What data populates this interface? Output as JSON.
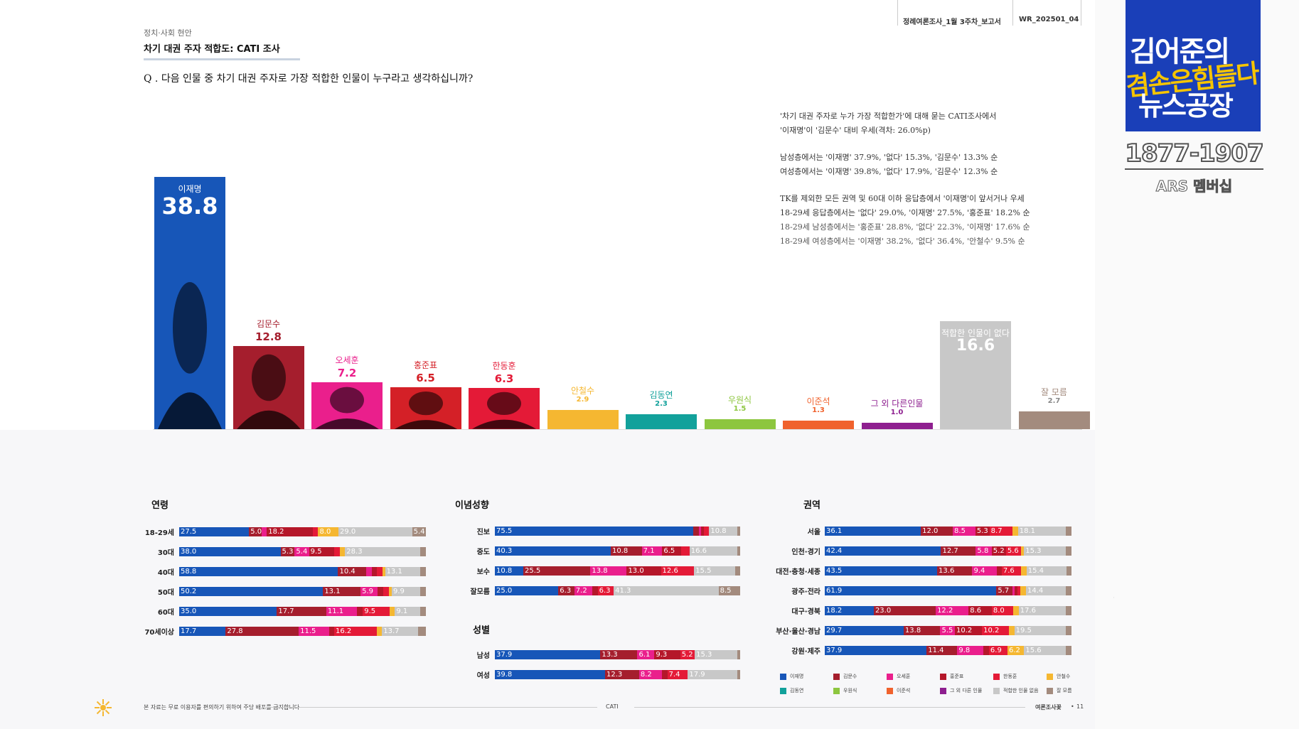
{
  "header": {
    "category": "정치·사회 현안",
    "section_title": "차기 대권 주자 적합도: CATI 조사",
    "question": "Q . 다음 인물 중 차기 대권 주자로 가장 적합한 인물이 누구라고 생각하십니까?",
    "doc_ids": [
      "정례여론조사_1월 3주차_보고서",
      "WR_202501_04"
    ]
  },
  "summary": {
    "lines_1": [
      "'차기 대권 주자로 누가 가장 적합한가'에 대해 묻는 CATI조사에서",
      "'이재명'이 '김문수' 대비 우세(격차: 26.0%p)"
    ],
    "lines_2": [
      "남성층에서는 '이재명' 37.9%, '없다' 15.3%, '김문수' 13.3% 순",
      "여성층에서는 '이재명' 39.8%, '없다' 17.9%, '김문수' 12.3% 순"
    ],
    "lines_3": [
      "TK를 제외한 모든 권역 및 60대 이하 응답층에서 '이재명'이 앞서거나 우세",
      "18-29세 응답층에서는 '없다' 29.0%, '이재명' 27.5%, '홍준표' 18.2% 순",
      "18-29세 남성층에서는 '홍준표' 28.8%, '없다' 22.3%, '이재명' 17.6% 순",
      "18-29세 여성층에서는 '이재명' 38.2%, '없다' 36.4%, '안철수' 9.5% 순"
    ]
  },
  "chart_data": [
    {
      "type": "bar",
      "categories": [
        "이재명",
        "김문수",
        "오세훈",
        "홍준표",
        "한동훈",
        "안철수",
        "김동연",
        "우원식",
        "이준석",
        "그 외 다른인물",
        "적합한 인물이 없다",
        "잘 모름"
      ],
      "values": [
        38.8,
        12.8,
        7.2,
        6.5,
        6.3,
        2.9,
        2.3,
        1.5,
        1.3,
        1.0,
        16.6,
        2.7
      ],
      "value_labels": [
        "38.8",
        "12.8",
        "7.2",
        "6.5",
        "6.3",
        "2.9",
        "2.3",
        "1.5",
        "1.3",
        "1.0",
        "16.6",
        "2.7"
      ],
      "colors": [
        "#1756b8",
        "#a51e2d",
        "#ea1f8c",
        "#d42027",
        "#e41a37",
        "#f5b731",
        "#12a19b",
        "#8dc63f",
        "#f0622d",
        "#8e1f8f",
        "#c8c8c8",
        "#a38b7e"
      ],
      "ylim": [
        0,
        40
      ]
    },
    {
      "type": "bar",
      "stacked": true,
      "horizontal": true,
      "group": "연령",
      "categories": [
        "18-29세",
        "30대",
        "40대",
        "50대",
        "60대",
        "70세이상"
      ],
      "series": [
        {
          "name": "이재명",
          "values": [
            27.5,
            38.0,
            58.8,
            50.2,
            35.0,
            17.7
          ]
        },
        {
          "name": "김문수",
          "values": [
            5.0,
            5.3,
            10.4,
            13.1,
            17.7,
            27.8
          ]
        },
        {
          "name": "오세훈",
          "values": [
            2.0,
            5.4,
            2.0,
            5.9,
            11.1,
            11.5
          ]
        },
        {
          "name": "홍준표",
          "values": [
            18.2,
            9.5,
            2.0,
            2.0,
            2.0,
            2.0
          ]
        },
        {
          "name": "한동훈",
          "values": [
            2.0,
            2.0,
            2.0,
            2.0,
            9.5,
            16.2
          ]
        },
        {
          "name": "안철수",
          "values": [
            8.0,
            2.0,
            1.0,
            1.0,
            2.0,
            2.0
          ]
        },
        {
          "name": "적합한 인물 없음",
          "values": [
            29.0,
            28.3,
            13.1,
            9.9,
            9.1,
            13.7
          ]
        },
        {
          "name": "잘 모름",
          "values": [
            5.4,
            2.0,
            2.0,
            2.0,
            2.0,
            3.0
          ]
        }
      ],
      "labels": [
        [
          "27.5",
          "5.0",
          "",
          "18.2",
          "",
          "8.0",
          "29.0",
          "5.4"
        ],
        [
          "38.0",
          "5.3",
          "5.4",
          "9.5",
          "",
          "",
          "28.3",
          ""
        ],
        [
          "58.8",
          "10.4",
          "",
          "",
          "",
          "",
          "13.1",
          ""
        ],
        [
          "50.2",
          "13.1",
          "5.9",
          "",
          "",
          "",
          "9.9",
          ""
        ],
        [
          "35.0",
          "17.7",
          "11.1",
          "",
          "9.5",
          "",
          "9.1",
          ""
        ],
        [
          "17.7",
          "27.8",
          "11.5",
          "",
          "16.2",
          "",
          "13.7",
          ""
        ]
      ]
    },
    {
      "type": "bar",
      "stacked": true,
      "horizontal": true,
      "group": "이념성향",
      "categories": [
        "진보",
        "중도",
        "보수",
        "잘모름"
      ],
      "series": [
        {
          "name": "이재명",
          "values": [
            75.5,
            40.3,
            10.8,
            25.0
          ]
        },
        {
          "name": "김문수",
          "values": [
            2.0,
            10.8,
            25.5,
            6.3
          ]
        },
        {
          "name": "오세훈",
          "values": [
            1.0,
            7.1,
            13.8,
            7.2
          ]
        },
        {
          "name": "홍준표",
          "values": [
            1.0,
            6.5,
            13.0,
            2.0
          ]
        },
        {
          "name": "한동훈",
          "values": [
            2.0,
            3.0,
            12.6,
            6.3
          ]
        },
        {
          "name": "적합한 인물 없음",
          "values": [
            10.8,
            16.6,
            15.5,
            41.3
          ]
        },
        {
          "name": "잘 모름",
          "values": [
            1.0,
            1.0,
            2.0,
            8.5
          ]
        }
      ],
      "labels": [
        [
          "75.5",
          "",
          "",
          "",
          "",
          "10.8",
          ""
        ],
        [
          "40.3",
          "10.8",
          "7.1",
          "6.5",
          "",
          "16.6",
          ""
        ],
        [
          "10.8",
          "25.5",
          "13.8",
          "13.0",
          "12.6",
          "15.5",
          ""
        ],
        [
          "25.0",
          "6.3",
          "7.2",
          "",
          "6.3",
          "41.3",
          "8.5"
        ]
      ]
    },
    {
      "type": "bar",
      "stacked": true,
      "horizontal": true,
      "group": "성별",
      "categories": [
        "남성",
        "여성"
      ],
      "series": [
        {
          "name": "이재명",
          "values": [
            37.9,
            39.8
          ]
        },
        {
          "name": "김문수",
          "values": [
            13.3,
            12.3
          ]
        },
        {
          "name": "오세훈",
          "values": [
            6.1,
            8.2
          ]
        },
        {
          "name": "홍준표",
          "values": [
            9.3,
            2.0
          ]
        },
        {
          "name": "한동훈",
          "values": [
            5.2,
            7.4
          ]
        },
        {
          "name": "적합한 인물 없음",
          "values": [
            15.3,
            17.9
          ]
        },
        {
          "name": "잘 모름",
          "values": [
            1.0,
            1.0
          ]
        }
      ],
      "labels": [
        [
          "37.9",
          "13.3",
          "6.1",
          "9.3",
          "5.2",
          "15.3",
          ""
        ],
        [
          "39.8",
          "12.3",
          "8.2",
          "",
          "7.4",
          "17.9",
          ""
        ]
      ]
    },
    {
      "type": "bar",
      "stacked": true,
      "horizontal": true,
      "group": "권역",
      "categories": [
        "서울",
        "인천·경기",
        "대전·충청·세종",
        "광주·전라",
        "대구·경북",
        "부산·울산·경남",
        "강원·제주"
      ],
      "series": [
        {
          "name": "이재명",
          "values": [
            36.1,
            42.4,
            43.5,
            61.9,
            18.2,
            29.7,
            37.9
          ]
        },
        {
          "name": "김문수",
          "values": [
            12.0,
            12.7,
            13.6,
            5.7,
            23.0,
            13.8,
            11.4
          ]
        },
        {
          "name": "오세훈",
          "values": [
            8.5,
            5.8,
            9.4,
            1.0,
            12.2,
            5.5,
            9.8
          ]
        },
        {
          "name": "홍준표",
          "values": [
            5.3,
            5.2,
            2.0,
            1.0,
            8.6,
            10.2,
            2.0
          ]
        },
        {
          "name": "한동훈",
          "values": [
            8.7,
            5.6,
            7.6,
            1.0,
            8.0,
            10.2,
            6.9
          ]
        },
        {
          "name": "안철수",
          "values": [
            2.0,
            1.0,
            2.0,
            2.0,
            2.0,
            2.0,
            6.2
          ]
        },
        {
          "name": "적합한 인물 없음",
          "values": [
            18.1,
            15.3,
            15.4,
            14.4,
            17.6,
            19.5,
            15.6
          ]
        },
        {
          "name": "잘 모름",
          "values": [
            2.0,
            2.0,
            2.0,
            2.0,
            2.0,
            2.0,
            2.0
          ]
        }
      ],
      "labels": [
        [
          "36.1",
          "12.0",
          "8.5",
          "5.3",
          "8.7",
          "",
          "18.1",
          ""
        ],
        [
          "42.4",
          "12.7",
          "5.8",
          "5.2",
          "5.6",
          "",
          "15.3",
          ""
        ],
        [
          "43.5",
          "13.6",
          "9.4",
          "",
          "7.6",
          "",
          "15.4",
          ""
        ],
        [
          "61.9",
          "5.7",
          "",
          "",
          "",
          "",
          "14.4",
          ""
        ],
        [
          "18.2",
          "23.0",
          "12.2",
          "8.6",
          "8.0",
          "",
          "17.6",
          ""
        ],
        [
          "29.7",
          "13.8",
          "5.5",
          "10.2",
          "10.2",
          "",
          "19.5",
          ""
        ],
        [
          "37.9",
          "11.4",
          "9.8",
          "",
          "6.9",
          "6.2",
          "15.6",
          ""
        ]
      ]
    }
  ],
  "legend": {
    "items": [
      {
        "name": "이재명",
        "color": "#1756b8"
      },
      {
        "name": "김문수",
        "color": "#a51e2d"
      },
      {
        "name": "오세훈",
        "color": "#ea1f8c"
      },
      {
        "name": "홍준표",
        "color": "#b5172a"
      },
      {
        "name": "한동훈",
        "color": "#e41a37"
      },
      {
        "name": "안철수",
        "color": "#f5b731"
      },
      {
        "name": "김동연",
        "color": "#12a19b"
      },
      {
        "name": "우원식",
        "color": "#8dc63f"
      },
      {
        "name": "이준석",
        "color": "#f0622d"
      },
      {
        "name": "그 외 다른 인물",
        "color": "#8e1f8f"
      },
      {
        "name": "적합한 인물 없음",
        "color": "#c8c8c8"
      },
      {
        "name": "잘 모름",
        "color": "#a38b7e"
      }
    ]
  },
  "footer": {
    "note": "본 자료는 무료 이용자를 편의하기 위하여 주당 배포를 금지합니다",
    "center": "CATI",
    "right": "여론조사꽃",
    "page": "11"
  },
  "brand": {
    "line1": "김어준의",
    "line2": "겸손은힘들다",
    "line3": "뉴스공장",
    "members_number": "1877-1907",
    "members_label": "ARS 멤버십"
  }
}
